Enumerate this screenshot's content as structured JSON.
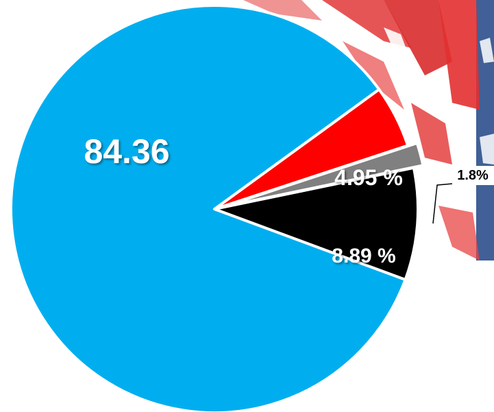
{
  "chart_data": {
    "type": "pie",
    "title": "",
    "slices": [
      {
        "label": "84.36",
        "value": 84.36,
        "color": "#00aeef"
      },
      {
        "label": "4.95 %",
        "value": 4.95,
        "color": "#ff0000"
      },
      {
        "label": "1.8%",
        "value": 1.8,
        "color": "#808080"
      },
      {
        "label": "8.89 %",
        "value": 8.89,
        "color": "#000000"
      }
    ],
    "legend": "none",
    "background": "flag-graphic-right"
  }
}
